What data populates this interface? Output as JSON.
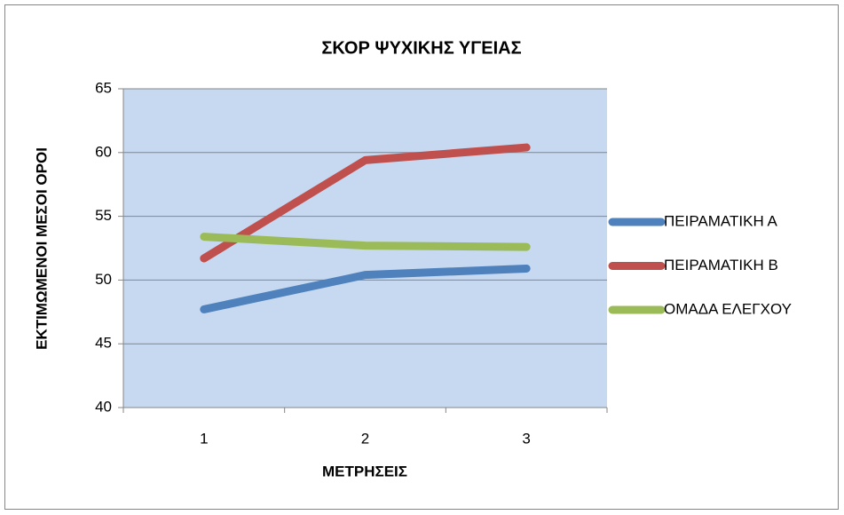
{
  "chart_data": {
    "type": "line",
    "title": "ΣΚΟΡ ΨΥΧΙΚΗΣ ΥΓΕΙΑΣ",
    "x_label": "ΜΕΤΡΗΣΕΙΣ",
    "y_label": "ΕΚΤΙΜΩΜΕΝΟΙ ΜΕΣΟΙ ΟΡΟΙ",
    "categories": [
      "1",
      "2",
      "3"
    ],
    "series": [
      {
        "name": "ΠΕΙΡΑΜΑΤΙΚΗ Α",
        "color": "#4f81bd",
        "values": [
          47.7,
          50.4,
          50.9
        ]
      },
      {
        "name": "ΠΕΙΡΑΜΑΤΙΚΗ Β",
        "color": "#c0504d",
        "values": [
          51.7,
          59.4,
          60.4
        ]
      },
      {
        "name": "ΟΜΑΔΑ ΕΛΕΓΧΟΥ",
        "color": "#9bbb59",
        "values": [
          53.4,
          52.7,
          52.6
        ]
      }
    ],
    "ylim": [
      40,
      65
    ],
    "yticks": [
      40,
      45,
      50,
      55,
      60,
      65
    ],
    "grid": true,
    "legend": "right"
  }
}
